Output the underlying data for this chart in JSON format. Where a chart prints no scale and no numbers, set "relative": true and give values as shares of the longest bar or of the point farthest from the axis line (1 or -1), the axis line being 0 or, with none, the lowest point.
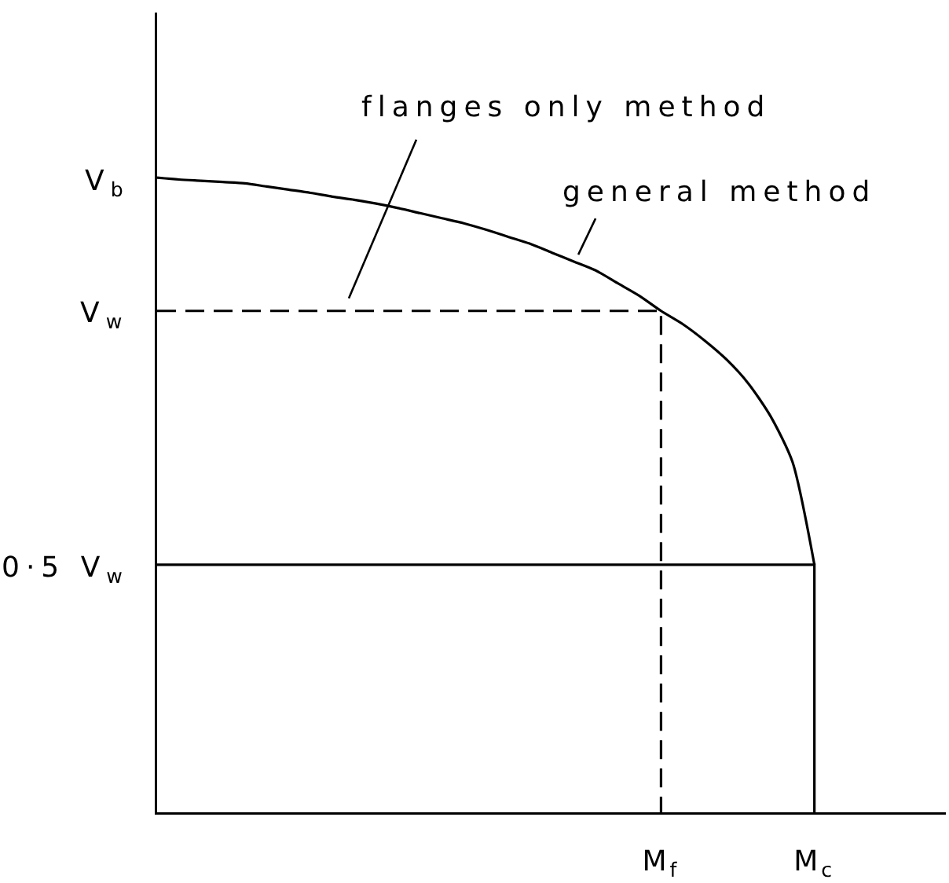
{
  "chart_data": {
    "type": "line",
    "relative": true,
    "tick_labels": "x",
    "categories": [
      null,
      null,
      null,
      null,
      null,
      null,
      null,
      null,
      null,
      null,
      null,
      null,
      null,
      null,
      null,
      null,
      null,
      null,
      null,
      null,
      null,
      null,
      null,
      "M$_{f}$",
      null,
      null,
      null,
      null,
      null,
      null,
      "M$_{c}$",
      null,
      null,
      null,
      null,
      null,
      null
    ],
    "series": [
      {
        "name": "general method",
        "color": "#000000",
        "values": [
          1.0,
          0.997,
          0.995,
          0.993,
          0.991,
          0.986,
          0.981,
          0.976,
          0.97,
          0.965,
          0.959,
          0.952,
          0.944,
          0.936,
          0.928,
          0.918,
          0.907,
          0.896,
          0.882,
          0.868,
          0.854,
          0.834,
          0.814,
          0.79,
          0.769,
          0.743,
          0.713,
          0.675,
          0.624,
          0.552,
          0.39,
          null,
          null,
          null,
          null,
          null,
          null
        ]
      },
      {
        "name": "flanges only method",
        "type": "step",
        "color": "#000000",
        "line_style": "dashed",
        "values": [
          0.79,
          0.79,
          0.79,
          0.79,
          0.79,
          0.79,
          0.79,
          0.79,
          0.79,
          0.79,
          0.79,
          0.79,
          0.79,
          0.79,
          0.79,
          0.79,
          0.79,
          0.79,
          0.79,
          0.79,
          0.79,
          0.79,
          0.79,
          0,
          null,
          null,
          null,
          null,
          null,
          null,
          null,
          null,
          null,
          null,
          null,
          null,
          null
        ]
      },
      {
        "type": "step",
        "color": "#000000",
        "values": [
          0.39,
          0.39,
          0.39,
          0.39,
          0.39,
          0.39,
          0.39,
          0.39,
          0.39,
          0.39,
          0.39,
          0.39,
          0.39,
          0.39,
          0.39,
          0.39,
          0.39,
          0.39,
          0.39,
          0.39,
          0.39,
          0.39,
          0.39,
          0.39,
          0.39,
          0.39,
          0.39,
          0.39,
          0.39,
          0.39,
          0,
          null,
          null,
          null,
          null,
          null,
          null
        ]
      }
    ],
    "annotations": [
      "V$_{b}$",
      "V$_{w}$",
      "0·5 V$_{w}$"
    ]
  }
}
